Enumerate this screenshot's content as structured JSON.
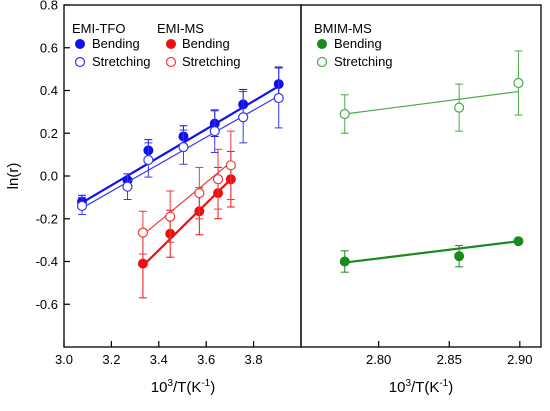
{
  "chart_data": [
    {
      "type": "scatter",
      "panel": "left",
      "xlabel_base": "10",
      "xlabel_sup": "3",
      "xlabel_mid": "/T(K",
      "xlabel_sup2": "-1",
      "xlabel_end": ")",
      "ylabel": "ln(r)",
      "xlim": [
        3.0,
        4.0
      ],
      "ylim": [
        -0.8,
        0.8
      ],
      "x_ticks": [
        3.0,
        3.2,
        3.4,
        3.6,
        3.8
      ],
      "x_tick_labels": [
        "3.0",
        "3.2",
        "3.4",
        "3.6",
        "3.8"
      ],
      "y_ticks": [
        -0.6,
        -0.4,
        -0.2,
        0.0,
        0.2,
        0.4,
        0.6,
        0.8
      ],
      "y_tick_labels": [
        "-0.6",
        "-0.4",
        "-0.2",
        "0.0",
        "0.2",
        "0.4",
        "0.6",
        "0.8"
      ],
      "grid": false,
      "legend_groups": [
        {
          "title": "EMI-TFO",
          "placement": "top-left"
        },
        {
          "title": "EMI-MS",
          "placement": "top-center"
        }
      ],
      "series": [
        {
          "group": "EMI-TFO",
          "name": "Bending",
          "marker": "filled",
          "color": "#1010ee",
          "x": [
            3.076,
            3.268,
            3.356,
            3.504,
            3.636,
            3.756,
            3.906
          ],
          "y": [
            -0.12,
            -0.02,
            0.12,
            0.185,
            0.245,
            0.335,
            0.43
          ],
          "err": [
            0.03,
            0.03,
            0.05,
            0.05,
            0.06,
            0.07,
            0.08
          ],
          "fit": [
            [
              3.076,
              -0.125
            ],
            [
              3.906,
              0.42
            ]
          ]
        },
        {
          "group": "EMI-TFO",
          "name": "Stretching",
          "marker": "open",
          "color": "#3a3ae6",
          "x": [
            3.076,
            3.268,
            3.356,
            3.504,
            3.636,
            3.756,
            3.906
          ],
          "y": [
            -0.14,
            -0.05,
            0.075,
            0.135,
            0.21,
            0.275,
            0.365
          ],
          "err": [
            0.04,
            0.06,
            0.08,
            0.08,
            0.1,
            0.12,
            0.14
          ],
          "fit": [
            [
              3.076,
              -0.15
            ],
            [
              3.906,
              0.375
            ]
          ]
        },
        {
          "group": "EMI-MS",
          "name": "Bending",
          "marker": "filled",
          "color": "#ee1010",
          "x": [
            3.333,
            3.448,
            3.571,
            3.65,
            3.704
          ],
          "y": [
            -0.41,
            -0.27,
            -0.165,
            -0.08,
            -0.015
          ],
          "err": [
            0.16,
            0.11,
            0.11,
            0.12,
            0.13
          ],
          "fit": [
            [
              3.333,
              -0.42
            ],
            [
              3.704,
              -0.015
            ]
          ]
        },
        {
          "group": "EMI-MS",
          "name": "Stretching",
          "marker": "open",
          "color": "#ee3a3a",
          "x": [
            3.333,
            3.448,
            3.571,
            3.65,
            3.704
          ],
          "y": [
            -0.265,
            -0.19,
            -0.08,
            -0.015,
            0.05
          ],
          "err": [
            0.1,
            0.12,
            0.12,
            0.14,
            0.16
          ],
          "fit": [
            [
              3.333,
              -0.275
            ],
            [
              3.704,
              0.065
            ]
          ]
        }
      ]
    },
    {
      "type": "scatter",
      "panel": "right",
      "xlim": [
        2.745,
        2.915
      ],
      "ylim": [
        -0.8,
        0.8
      ],
      "x_ticks": [
        2.8,
        2.85,
        2.9
      ],
      "x_tick_labels": [
        "2.80",
        "2.85",
        "2.90"
      ],
      "grid": false,
      "legend_groups": [
        {
          "title": "BMIM-MS",
          "placement": "top-left"
        }
      ],
      "series": [
        {
          "group": "BMIM-MS",
          "name": "Bending",
          "marker": "filled",
          "color": "#1a8a1a",
          "x": [
            2.776,
            2.857,
            2.899
          ],
          "y": [
            -0.4,
            -0.375,
            -0.305
          ],
          "err": [
            0.05,
            0.05,
            0.01
          ],
          "fit": [
            [
              2.776,
              -0.405
            ],
            [
              2.899,
              -0.305
            ]
          ]
        },
        {
          "group": "BMIM-MS",
          "name": "Stretching",
          "marker": "open",
          "color": "#4aa84a",
          "x": [
            2.776,
            2.857,
            2.899
          ],
          "y": [
            0.29,
            0.32,
            0.435
          ],
          "err": [
            0.09,
            0.11,
            0.15
          ],
          "fit": [
            [
              2.776,
              0.29
            ],
            [
              2.899,
              0.395
            ]
          ]
        }
      ]
    }
  ]
}
